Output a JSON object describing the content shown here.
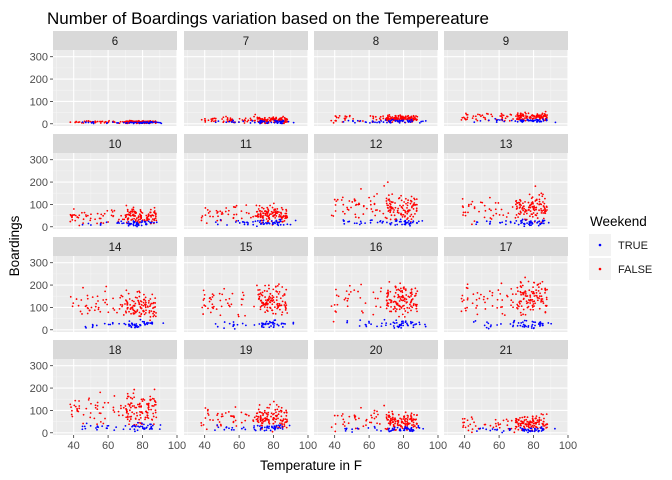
{
  "chart_data": {
    "type": "scatter",
    "title": "Number of Boardings variation based on the Tempereature",
    "xlabel": "Temperature in F",
    "ylabel": "Boardings",
    "xlim": [
      28,
      100
    ],
    "ylim": [
      -10,
      330
    ],
    "x_ticks": [
      40,
      60,
      80,
      100
    ],
    "y_ticks": [
      0,
      100,
      200,
      300
    ],
    "grid": true,
    "legend": {
      "title": "Weekend",
      "placement": "right",
      "entries": [
        {
          "label": "TRUE",
          "color": "#0000ff"
        },
        {
          "label": "FALSE",
          "color": "#ff0000"
        }
      ]
    },
    "facet_by": "hour",
    "facets": [
      {
        "label": "6",
        "weekday_mean": 8,
        "weekday_spread": 3,
        "weekend_mean": 5,
        "weekend_spread": 2
      },
      {
        "label": "7",
        "weekday_mean": 17,
        "weekday_spread": 7,
        "weekend_mean": 8,
        "weekend_spread": 3
      },
      {
        "label": "8",
        "weekday_mean": 24,
        "weekday_spread": 8,
        "weekend_mean": 10,
        "weekend_spread": 4
      },
      {
        "label": "9",
        "weekday_mean": 30,
        "weekday_spread": 10,
        "weekend_mean": 13,
        "weekend_spread": 4
      },
      {
        "label": "10",
        "weekday_mean": 45,
        "weekday_spread": 18,
        "weekend_mean": 17,
        "weekend_spread": 6
      },
      {
        "label": "11",
        "weekday_mean": 55,
        "weekday_spread": 20,
        "weekend_mean": 18,
        "weekend_spread": 7
      },
      {
        "label": "12",
        "weekday_mean": 85,
        "weekday_spread": 30,
        "weekend_mean": 20,
        "weekend_spread": 7
      },
      {
        "label": "13",
        "weekday_mean": 80,
        "weekday_spread": 30,
        "weekend_mean": 20,
        "weekend_spread": 7
      },
      {
        "label": "14",
        "weekday_mean": 110,
        "weekday_spread": 35,
        "weekend_mean": 22,
        "weekend_spread": 8
      },
      {
        "label": "15",
        "weekday_mean": 130,
        "weekday_spread": 35,
        "weekend_mean": 25,
        "weekend_spread": 8
      },
      {
        "label": "16",
        "weekday_mean": 135,
        "weekday_spread": 40,
        "weekend_mean": 25,
        "weekend_spread": 8
      },
      {
        "label": "17",
        "weekday_mean": 140,
        "weekday_spread": 45,
        "weekend_mean": 25,
        "weekend_spread": 8
      },
      {
        "label": "18",
        "weekday_mean": 105,
        "weekday_spread": 40,
        "weekend_mean": 25,
        "weekend_spread": 8
      },
      {
        "label": "19",
        "weekday_mean": 70,
        "weekday_spread": 28,
        "weekend_mean": 22,
        "weekend_spread": 7
      },
      {
        "label": "20",
        "weekday_mean": 50,
        "weekday_spread": 22,
        "weekend_mean": 17,
        "weekend_spread": 6
      },
      {
        "label": "21",
        "weekday_mean": 42,
        "weekday_spread": 18,
        "weekend_mean": 14,
        "weekend_spread": 5
      }
    ]
  },
  "colors": {
    "panel_background": "#ebebeb",
    "strip_background": "#d9d9d9",
    "grid_major": "#ffffff",
    "weekend_true": "#0000ff",
    "weekend_false": "#ff0000"
  }
}
